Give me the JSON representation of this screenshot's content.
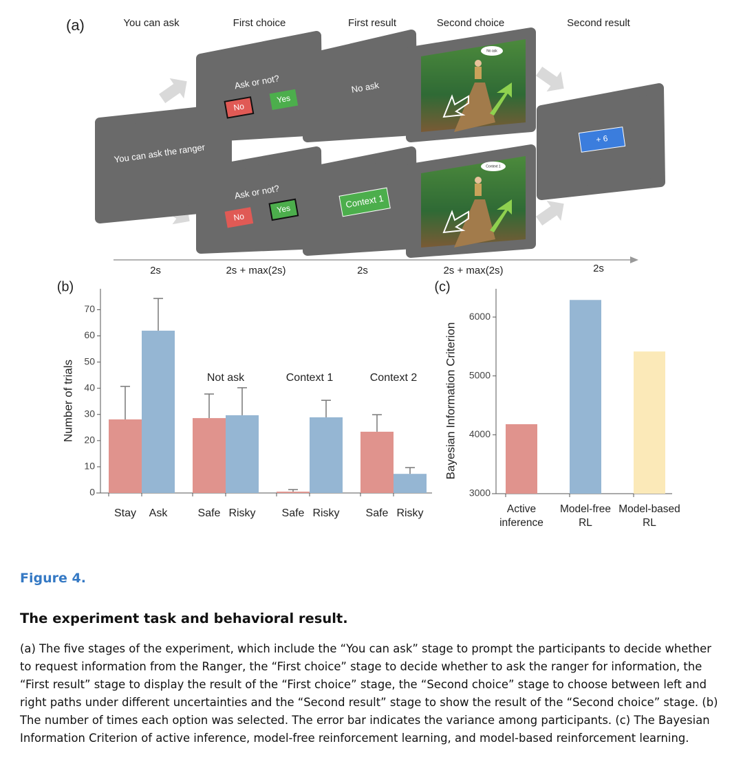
{
  "panel_a": {
    "label": "(a)",
    "stages": [
      "You can ask",
      "First choice",
      "First result",
      "Second choice",
      "Second result"
    ],
    "timings": [
      "2s",
      "2s + max(2s)",
      "2s",
      "2s + max(2s)",
      "2s"
    ],
    "screens": [
      {
        "text": "You can ask the ranger"
      },
      {
        "question": "Ask or not?",
        "options": [
          "No",
          "Yes"
        ]
      },
      {
        "question": "Ask or not?",
        "options": [
          "No",
          "Yes"
        ]
      },
      {
        "text": "No ask"
      },
      {
        "text": "Context 1"
      },
      {
        "bubble": "No ask"
      },
      {
        "bubble": "Context 1"
      },
      {
        "text": "+ 6"
      }
    ]
  },
  "chart_data": [
    {
      "type": "bar",
      "label": "(b)",
      "ylabel": "Number of trials",
      "categories": [
        "Stay",
        "Ask",
        "Safe",
        "Risky",
        "Safe",
        "Risky",
        "Safe",
        "Risky"
      ],
      "group_labels": [
        null,
        "Not ask",
        "Context 1",
        "Context 2"
      ],
      "values": [
        28.1,
        62,
        28.6,
        29.7,
        0.5,
        28.9,
        23.4,
        7.3
      ],
      "errors": [
        12.6,
        12.3,
        9.2,
        10.5,
        0.8,
        6.5,
        6.5,
        2.4
      ],
      "colors": [
        "#e0938d",
        "#95b6d3",
        "#e0938d",
        "#95b6d3",
        "#e0938d",
        "#95b6d3",
        "#e0938d",
        "#95b6d3"
      ],
      "ylim": [
        0,
        78
      ],
      "yticks": [
        0,
        10,
        20,
        30,
        40,
        50,
        60,
        70
      ]
    },
    {
      "type": "bar",
      "label": "(c)",
      "ylabel": "Bayesian Information Criterion",
      "categories": [
        [
          "Active",
          "inference"
        ],
        [
          "Model-free",
          "RL"
        ],
        [
          "Model-based",
          "RL"
        ]
      ],
      "values": [
        4180,
        6290,
        5415
      ],
      "colors": [
        "#e0938d",
        "#95b6d3",
        "#fbe9b8"
      ],
      "ylim": [
        3000,
        6480
      ],
      "yticks": [
        3000,
        4000,
        5000,
        6000
      ]
    }
  ],
  "caption": {
    "figure": "Figure 4.",
    "title": "The experiment task and behavioral result.",
    "body": "(a) The five stages of the experiment, which include the “You can ask” stage to prompt the participants to decide whether to request information from the Ranger, the “First choice” stage to decide whether to ask the ranger for information, the “First result” stage to display the result of the “First choice” stage, the “Second choice” stage to choose between left and right paths under different uncertainties and the “Second result” stage to show the result of the “Second choice” stage. (b) The number of times each option was selected. The error bar indicates the variance among participants. (c) The Bayesian Information Criterion of active inference, model-free reinforcement learning, and model-based reinforcement learning."
  }
}
